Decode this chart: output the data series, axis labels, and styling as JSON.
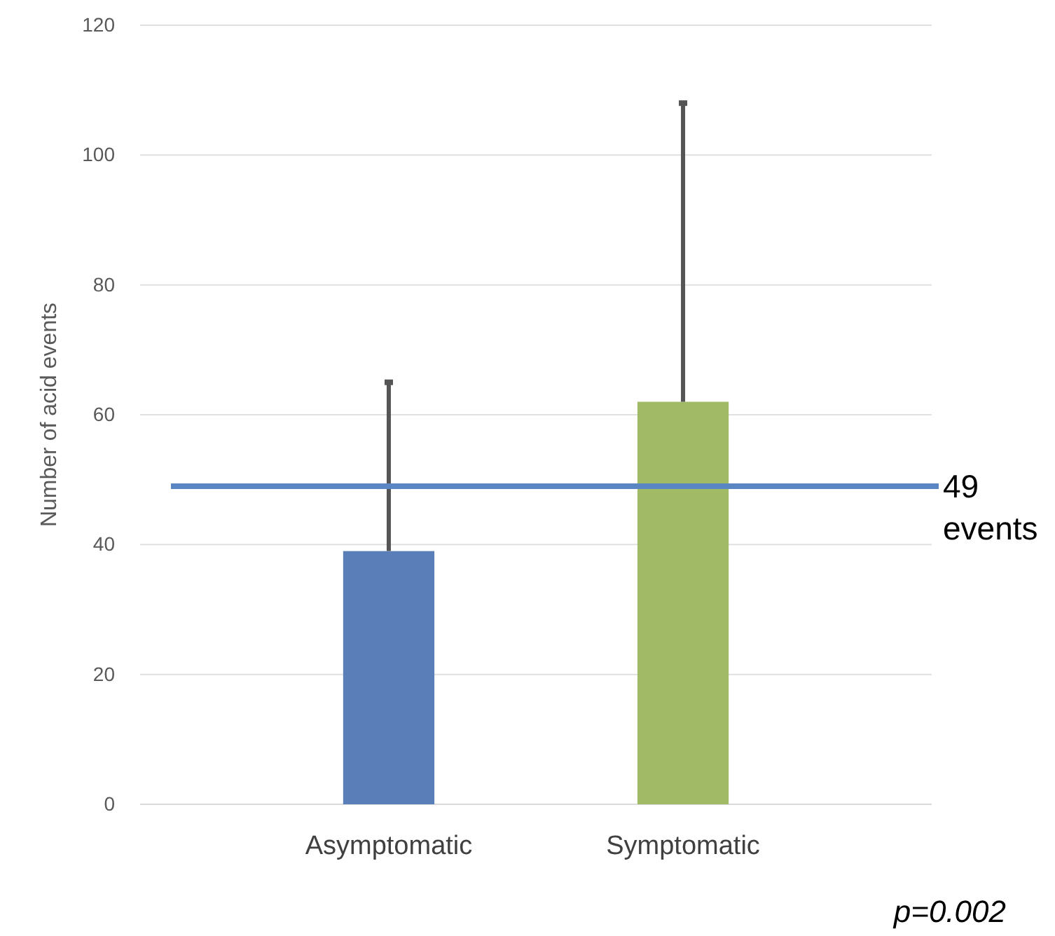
{
  "chart_data": {
    "type": "bar",
    "ylabel": "Number of acid events",
    "categories": [
      "Asymptomatic",
      "Symptomatic"
    ],
    "values": [
      39,
      62
    ],
    "colors": [
      "#5a7fb8",
      "#a1ba66"
    ],
    "errors": [
      [
        39,
        65
      ],
      [
        62,
        108
      ]
    ],
    "ylim": [
      0,
      120
    ],
    "yticks": [
      0,
      20,
      40,
      60,
      80,
      100,
      120
    ],
    "grid": "y",
    "ref_lines": [
      {
        "axis": "y",
        "value": 49,
        "label": "49 events",
        "color": "#5b86c4"
      }
    ],
    "annotations": [
      "p=0.002"
    ]
  }
}
